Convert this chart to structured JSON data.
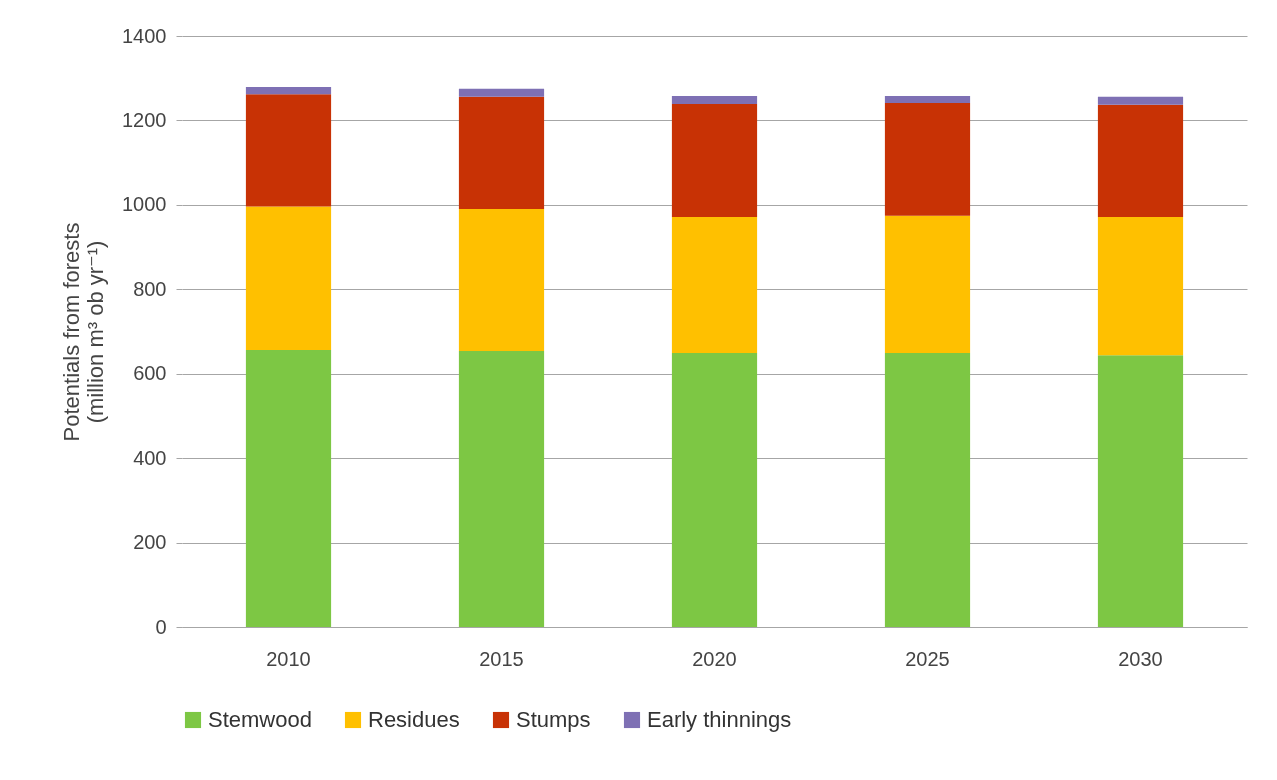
{
  "chart_data": {
    "type": "bar",
    "stacked": true,
    "ylabel": "Potentials from forests\n(million m³ ob yr⁻¹)",
    "categories": [
      "2010",
      "2015",
      "2020",
      "2025",
      "2030"
    ],
    "series": [
      {
        "name": "Stemwood",
        "color": "#7dc744",
        "values": [
          656,
          654,
          649,
          649,
          644
        ]
      },
      {
        "name": "Residues",
        "color": "#ffc000",
        "values": [
          340,
          336,
          322,
          325,
          327
        ]
      },
      {
        "name": "Stumps",
        "color": "#c83205",
        "values": [
          266,
          266,
          268,
          267,
          266
        ]
      },
      {
        "name": "Early thinnings",
        "color": "#7e70b4",
        "values": [
          17,
          19,
          19,
          17,
          19
        ]
      }
    ],
    "ylim": [
      0,
      1400
    ],
    "yticks": [
      0,
      200,
      400,
      600,
      800,
      1000,
      1200,
      1400
    ],
    "grid": "y",
    "legend": "bottom"
  }
}
